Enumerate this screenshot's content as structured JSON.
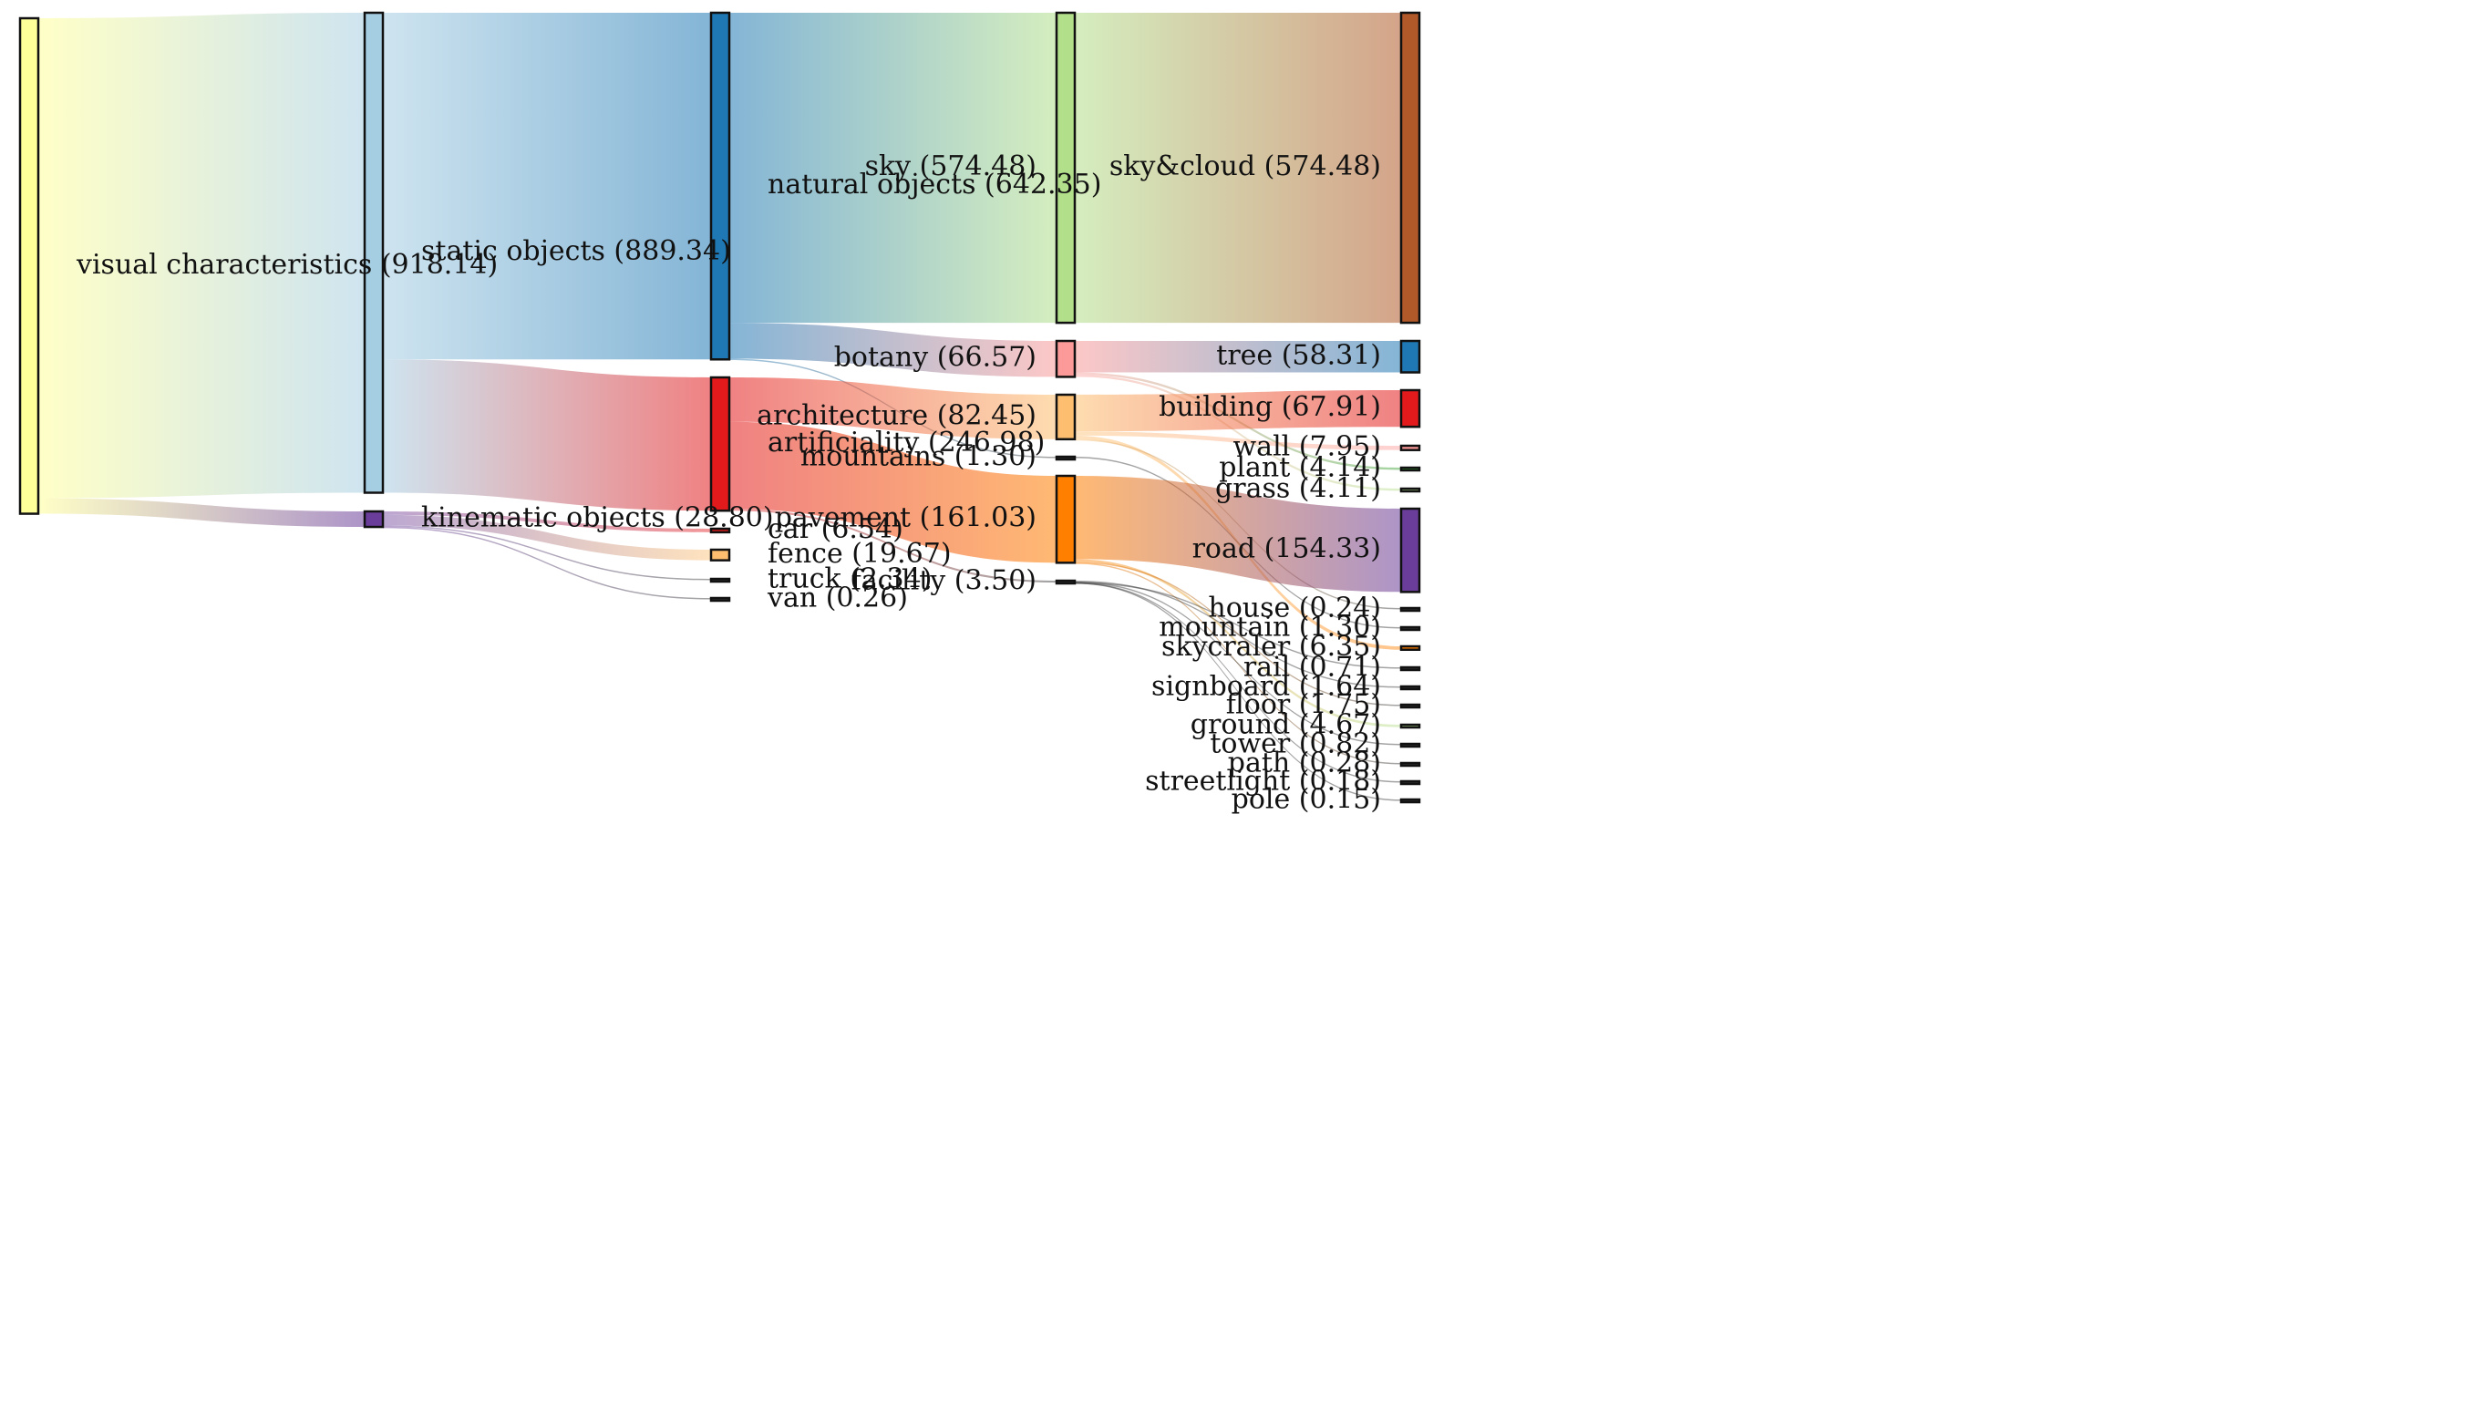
{
  "chart_data": {
    "type": "sankey",
    "nodes": [
      {
        "id": "vc",
        "label": "visual characteristics  (918.14)",
        "value": 918.14,
        "color": "#ffff99",
        "level": 0
      },
      {
        "id": "so",
        "label": "static objects (889.34)",
        "value": 889.34,
        "color": "#a6cee3",
        "level": 1
      },
      {
        "id": "ko",
        "label": "kinematic objects (28.80)",
        "value": 28.8,
        "color": "#6a3d9a",
        "level": 1
      },
      {
        "id": "no",
        "label": "natural objects (642.35)",
        "value": 642.35,
        "color": "#1f78b4",
        "level": 2
      },
      {
        "id": "ar",
        "label": "artificiality (246.98)",
        "value": 246.98,
        "color": "#e31a1c",
        "level": 2
      },
      {
        "id": "car",
        "label": "car (6.54)",
        "value": 6.54,
        "color": "#e31a1c",
        "level": 2
      },
      {
        "id": "fence",
        "label": "fence (19.67)",
        "value": 19.67,
        "color": "#fdbf6f",
        "level": 2
      },
      {
        "id": "truck",
        "label": "truck (2.34)",
        "value": 2.34,
        "color": "#333333",
        "level": 2
      },
      {
        "id": "van",
        "label": "van (0.26)",
        "value": 0.26,
        "color": "#333333",
        "level": 2
      },
      {
        "id": "sky",
        "label": "sky (574.48)",
        "value": 574.48,
        "color": "#b2df8a",
        "level": 3
      },
      {
        "id": "botany",
        "label": "botany (66.57)",
        "value": 66.57,
        "color": "#fb9a99",
        "level": 3
      },
      {
        "id": "arch",
        "label": "architecture (82.45)",
        "value": 82.45,
        "color": "#fdbf6f",
        "level": 3
      },
      {
        "id": "mountains",
        "label": "mountains (1.30)",
        "value": 1.3,
        "color": "#333333",
        "level": 3
      },
      {
        "id": "pave",
        "label": "pavement (161.03)",
        "value": 161.03,
        "color": "#ff7f00",
        "level": 3
      },
      {
        "id": "facility",
        "label": "facility (3.50)",
        "value": 3.5,
        "color": "#333333",
        "level": 3
      },
      {
        "id": "skycloud",
        "label": "sky&cloud (574.48)",
        "value": 574.48,
        "color": "#b15928",
        "level": 4
      },
      {
        "id": "tree",
        "label": "tree (58.31)",
        "value": 58.31,
        "color": "#1f78b4",
        "level": 4
      },
      {
        "id": "building",
        "label": "building (67.91)",
        "value": 67.91,
        "color": "#e31a1c",
        "level": 4
      },
      {
        "id": "wall",
        "label": "wall (7.95)",
        "value": 7.95,
        "color": "#fb9a99",
        "level": 4
      },
      {
        "id": "plant",
        "label": "plant (4.14)",
        "value": 4.14,
        "color": "#33a02c",
        "level": 4
      },
      {
        "id": "grass",
        "label": "grass (4.11)",
        "value": 4.11,
        "color": "#b2df8a",
        "level": 4
      },
      {
        "id": "road",
        "label": "road (154.33)",
        "value": 154.33,
        "color": "#6a3d9a",
        "level": 4
      },
      {
        "id": "house",
        "label": "house (0.24)",
        "value": 0.24,
        "color": "#333333",
        "level": 4
      },
      {
        "id": "mountain",
        "label": "mountain (1.30)",
        "value": 1.3,
        "color": "#333333",
        "level": 4
      },
      {
        "id": "skycraler",
        "label": "skycraler (6.35)",
        "value": 6.35,
        "color": "#ff7f00",
        "level": 4
      },
      {
        "id": "rail",
        "label": "rail (0.71)",
        "value": 0.71,
        "color": "#333333",
        "level": 4
      },
      {
        "id": "signboard",
        "label": "signboard (1.64)",
        "value": 1.64,
        "color": "#333333",
        "level": 4
      },
      {
        "id": "floor",
        "label": "floor (1.75)",
        "value": 1.75,
        "color": "#333333",
        "level": 4
      },
      {
        "id": "ground",
        "label": "ground (4.67)",
        "value": 4.67,
        "color": "#b2df8a",
        "level": 4
      },
      {
        "id": "tower",
        "label": "tower (0.82)",
        "value": 0.82,
        "color": "#333333",
        "level": 4
      },
      {
        "id": "path",
        "label": "path (0.28)",
        "value": 0.28,
        "color": "#333333",
        "level": 4
      },
      {
        "id": "streetlight",
        "label": "streetlight (0.18)",
        "value": 0.18,
        "color": "#333333",
        "level": 4
      },
      {
        "id": "pole",
        "label": "pole (0.15)",
        "value": 0.15,
        "color": "#333333",
        "level": 4
      }
    ],
    "links": [
      {
        "source": "vc",
        "target": "so",
        "value": 889.34
      },
      {
        "source": "vc",
        "target": "ko",
        "value": 28.8
      },
      {
        "source": "so",
        "target": "no",
        "value": 642.35
      },
      {
        "source": "so",
        "target": "ar",
        "value": 246.98
      },
      {
        "source": "ko",
        "target": "car",
        "value": 6.54
      },
      {
        "source": "ko",
        "target": "fence",
        "value": 19.67
      },
      {
        "source": "ko",
        "target": "truck",
        "value": 2.34
      },
      {
        "source": "ko",
        "target": "van",
        "value": 0.26
      },
      {
        "source": "no",
        "target": "sky",
        "value": 574.48
      },
      {
        "source": "no",
        "target": "botany",
        "value": 66.57
      },
      {
        "source": "no",
        "target": "mountains",
        "value": 1.3
      },
      {
        "source": "ar",
        "target": "arch",
        "value": 82.45
      },
      {
        "source": "ar",
        "target": "pave",
        "value": 161.03
      },
      {
        "source": "ar",
        "target": "facility",
        "value": 3.5
      },
      {
        "source": "sky",
        "target": "skycloud",
        "value": 574.48
      },
      {
        "source": "botany",
        "target": "tree",
        "value": 58.31
      },
      {
        "source": "botany",
        "target": "plant",
        "value": 4.14
      },
      {
        "source": "botany",
        "target": "grass",
        "value": 4.11
      },
      {
        "source": "arch",
        "target": "building",
        "value": 67.91
      },
      {
        "source": "arch",
        "target": "wall",
        "value": 7.95
      },
      {
        "source": "arch",
        "target": "skycraler",
        "value": 6.35
      },
      {
        "source": "arch",
        "target": "house",
        "value": 0.24
      },
      {
        "source": "mountains",
        "target": "mountain",
        "value": 1.3
      },
      {
        "source": "pave",
        "target": "road",
        "value": 154.33
      },
      {
        "source": "pave",
        "target": "ground",
        "value": 4.67
      },
      {
        "source": "pave",
        "target": "floor",
        "value": 1.75
      },
      {
        "source": "pave",
        "target": "path",
        "value": 0.28
      },
      {
        "source": "facility",
        "target": "signboard",
        "value": 1.64
      },
      {
        "source": "facility",
        "target": "tower",
        "value": 0.82
      },
      {
        "source": "facility",
        "target": "rail",
        "value": 0.71
      },
      {
        "source": "facility",
        "target": "streetlight",
        "value": 0.18
      },
      {
        "source": "facility",
        "target": "pole",
        "value": 0.15
      }
    ]
  }
}
